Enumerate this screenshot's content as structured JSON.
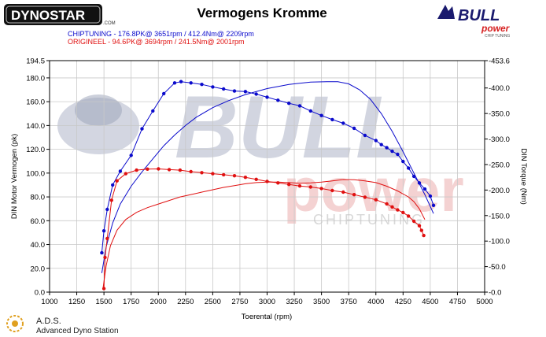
{
  "header": {
    "brand_logo_text": "DYNOSTAR",
    "brand_logo_small": ".COM",
    "partner_logo_text": "BULL",
    "partner_logo_sub": "power",
    "partner_logo_tag": "CHIP TUNING"
  },
  "watermark": {
    "word1": "BULL",
    "word2": "power",
    "tag": "CHIPTUNING"
  },
  "footer": {
    "logo_abbr": "A.D.S.",
    "logo_text": "Advanced Dyno Station"
  },
  "colors": {
    "tuned": "#0a0acc",
    "stock": "#e01010",
    "grid": "#c8c8c8",
    "watermark_grey": "#aeb4c8",
    "watermark_red": "#f1c4c4"
  },
  "chart_data": {
    "type": "line",
    "title": "Vermogens Kromme",
    "legend": [
      {
        "label": "CHIPTUNING  - 176.8PK@ 3651rpm / 412.4Nm@ 2209rpm",
        "color": "#0a0acc"
      },
      {
        "label": "ORIGINEEL  - 94.6PK@ 3694rpm / 241.5Nm@ 2001rpm",
        "color": "#e01010"
      }
    ],
    "legend_position": "top-left",
    "grid": true,
    "xlabel": "Toerental (rpm)",
    "ylabel_left": "DIN Motor Vermogen (pk)",
    "ylabel_right": "DIN Torque (Nm)",
    "xlim": [
      1000,
      5000
    ],
    "ylim_left": [
      0,
      194.5
    ],
    "ylim_right": [
      0,
      453.6
    ],
    "x_ticks": [
      "1000",
      "1250",
      "1500",
      "1750",
      "2000",
      "2250",
      "2500",
      "2750",
      "3000",
      "3250",
      "3500",
      "3750",
      "4000",
      "4250",
      "4500",
      "4750",
      "5000"
    ],
    "y_left_ticks": [
      "0.0",
      "20.0",
      "40.0",
      "60.0",
      "80.0",
      "100.0",
      "120.0",
      "140.0",
      "160.0",
      "180.0",
      "194.5"
    ],
    "y_left_tick_values": [
      0,
      20,
      40,
      60,
      80,
      100,
      120,
      140,
      160,
      180,
      194.5
    ],
    "y_right_ticks": [
      "0.0",
      "50.0",
      "100.0",
      "150.0",
      "200.0",
      "250.0",
      "300.0",
      "350.0",
      "400.0",
      "453.6"
    ],
    "y_right_tick_values": [
      0,
      50,
      100,
      150,
      200,
      250,
      300,
      350,
      400,
      453.6
    ],
    "series": [
      {
        "name": "CHIPTUNING",
        "quantity": "power",
        "axis": "left",
        "color": "#0a0acc",
        "x": [
          1480,
          1520,
          1580,
          1650,
          1750,
          1850,
          1950,
          2050,
          2150,
          2250,
          2350,
          2500,
          2650,
          2800,
          3000,
          3200,
          3400,
          3550,
          3650,
          3750,
          3850,
          3950,
          4050,
          4150,
          4250,
          4350,
          4450,
          4530
        ],
        "y": [
          16,
          38,
          58,
          74,
          89,
          101,
          112,
          123,
          132,
          140,
          147,
          155,
          161,
          166,
          171,
          174.5,
          176.5,
          176.8,
          176.8,
          175,
          170,
          162,
          150,
          135,
          118,
          100,
          82,
          66
        ]
      },
      {
        "name": "CHIPTUNING",
        "quantity": "torque",
        "axis": "right",
        "color": "#0a0acc",
        "x": [
          1480,
          1500,
          1530,
          1580,
          1650,
          1750,
          1850,
          1950,
          2050,
          2150,
          2209,
          2300,
          2400,
          2500,
          2600,
          2700,
          2800,
          2900,
          3000,
          3100,
          3200,
          3300,
          3400,
          3500,
          3600,
          3700,
          3800,
          3900,
          4000,
          4050,
          4100,
          4150,
          4200,
          4250,
          4300,
          4350,
          4400,
          4450,
          4500,
          4530
        ],
        "y": [
          77,
          120,
          162,
          210,
          237,
          268,
          320,
          355,
          389,
          410,
          412.4,
          410,
          407,
          402,
          398,
          394,
          393,
          388,
          382,
          376,
          370,
          365,
          355,
          346,
          338,
          331,
          321,
          307,
          297,
          289,
          283,
          276,
          270,
          256,
          243,
          227,
          214,
          202,
          188,
          170
        ]
      },
      {
        "name": "ORIGINEEL",
        "quantity": "power",
        "axis": "left",
        "color": "#e01010",
        "x": [
          1490,
          1520,
          1560,
          1620,
          1700,
          1800,
          1900,
          2000,
          2100,
          2200,
          2300,
          2400,
          2500,
          2600,
          2700,
          2800,
          2900,
          3000,
          3100,
          3200,
          3300,
          3400,
          3500,
          3600,
          3700,
          3800,
          3900,
          4000,
          4100,
          4200,
          4300,
          4350,
          4400,
          4450
        ],
        "y": [
          2,
          22,
          39,
          52,
          61,
          67,
          71,
          74,
          77,
          80,
          82,
          84,
          86,
          88,
          89.5,
          91,
          92,
          92.5,
          92.5,
          92,
          91.5,
          91.8,
          92.5,
          93.5,
          94.6,
          94.5,
          93.5,
          92,
          89,
          85,
          80,
          76,
          70,
          61
        ]
      },
      {
        "name": "ORIGINEEL",
        "quantity": "torque",
        "axis": "right",
        "color": "#e01010",
        "x": [
          1500,
          1510,
          1530,
          1570,
          1620,
          1700,
          1800,
          1900,
          2001,
          2100,
          2200,
          2300,
          2400,
          2500,
          2600,
          2700,
          2800,
          2900,
          3000,
          3100,
          3200,
          3300,
          3400,
          3500,
          3600,
          3700,
          3800,
          3900,
          4000,
          4100,
          4150,
          4200,
          4250,
          4300,
          4350,
          4400,
          4420,
          4440
        ],
        "y": [
          7,
          68,
          105,
          180,
          218,
          232,
          239,
          241,
          241.5,
          240,
          239,
          236,
          234,
          232,
          230,
          228,
          225,
          221,
          217,
          214,
          211,
          208,
          206,
          203,
          199,
          196,
          191,
          186,
          181,
          173,
          167,
          161,
          156,
          149,
          139,
          130,
          121,
          111
        ]
      }
    ]
  }
}
